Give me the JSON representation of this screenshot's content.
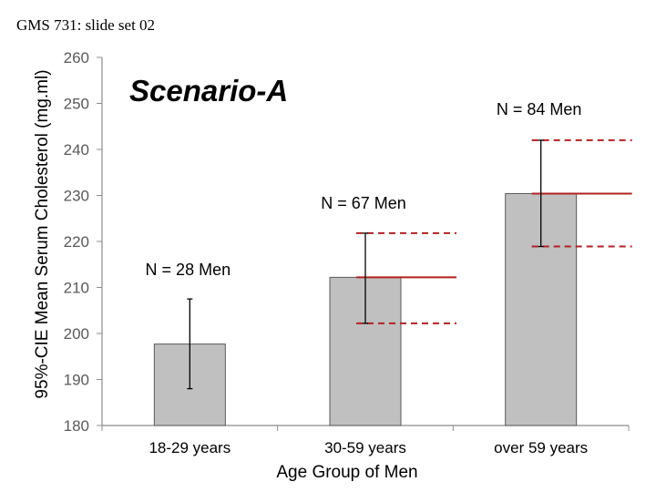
{
  "slide": {
    "header": "GMS 731: slide set 02"
  },
  "chart_data": {
    "type": "bar",
    "title": "Scenario-A",
    "xlabel": "Age Group of Men",
    "ylabel": "95%-CIE Mean Serum Cholesterol (mg.ml)",
    "ylim": [
      180,
      260
    ],
    "yticks": [
      180,
      190,
      200,
      210,
      220,
      230,
      240,
      250,
      260
    ],
    "grid": false,
    "categories": [
      "18-29 years",
      "30-59 years",
      "over 59 years"
    ],
    "values": [
      197.7,
      212.2,
      230.4
    ],
    "ci_lower": [
      188.0,
      202.2,
      218.9
    ],
    "ci_upper": [
      207.5,
      221.8,
      242.0
    ],
    "annotations": [
      "N = 28 Men",
      "N = 67 Men",
      "N = 84 Men"
    ],
    "reference_lines": [
      {
        "y": 212.2,
        "x_start_category": 1,
        "style": "solid"
      },
      {
        "y": 221.8,
        "x_start_category": 1,
        "style": "dashed"
      },
      {
        "y": 202.2,
        "x_start_category": 1,
        "style": "dashed"
      },
      {
        "y": 230.4,
        "x_start_category": 2,
        "style": "solid"
      },
      {
        "y": 242.0,
        "x_start_category": 2,
        "style": "dashed"
      },
      {
        "y": 218.9,
        "x_start_category": 2,
        "style": "dashed"
      }
    ],
    "colors": {
      "bar_fill": "#c0c0c0",
      "bar_stroke": "#5a5a5a",
      "axis": "#8c8c8c",
      "reference": "#b22222",
      "error_bar": "#000000"
    }
  }
}
